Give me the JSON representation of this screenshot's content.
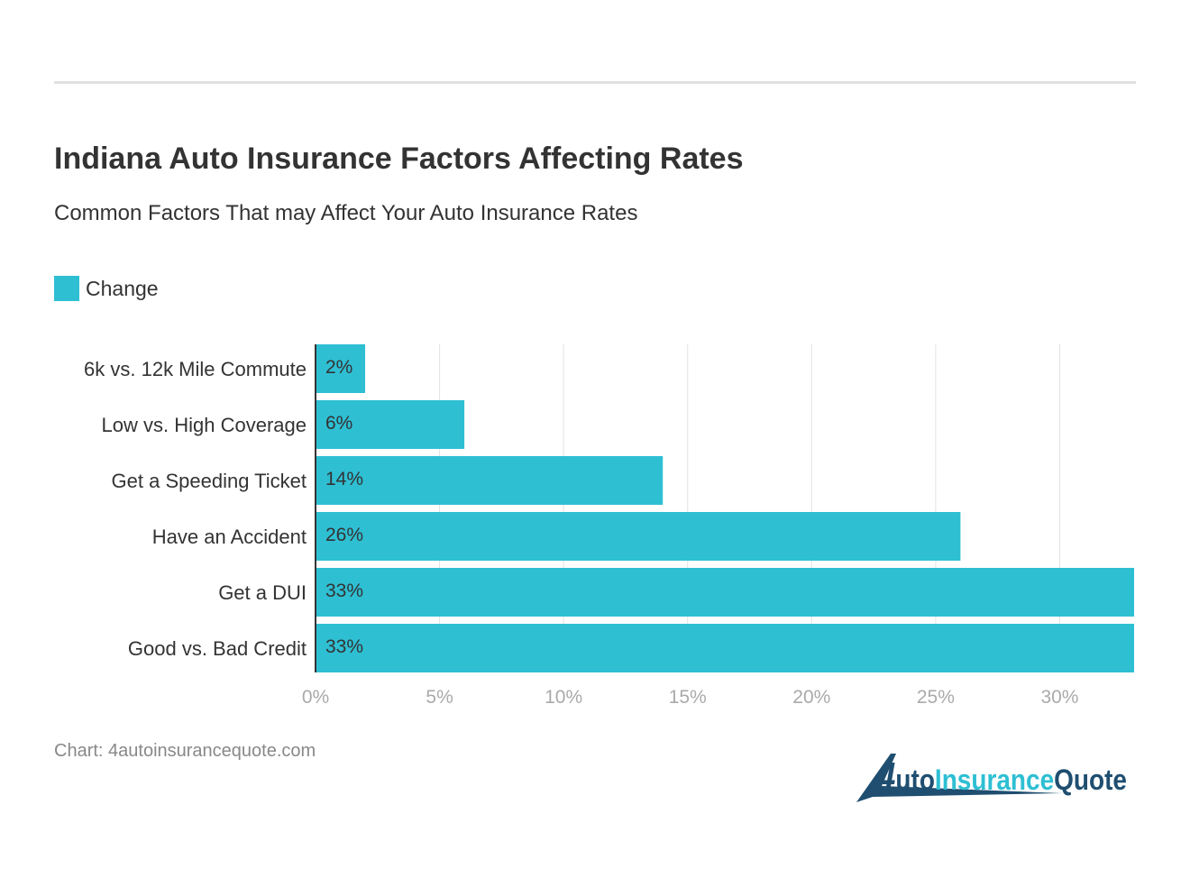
{
  "header": {
    "title": "Indiana Auto Insurance Factors Affecting Rates",
    "subtitle": "Common Factors That may Affect Your Auto Insurance Rates"
  },
  "footer": {
    "source": "Chart: 4autoinsurancequote.com",
    "logo_text": "4AutoInsuranceQuote"
  },
  "colors": {
    "bar": "#2ebfd3",
    "logo_dark": "#1f4e70",
    "logo_light": "#2ebfd3"
  },
  "chart_data": {
    "type": "bar",
    "orientation": "horizontal",
    "title": "Indiana Auto Insurance Factors Affecting Rates",
    "subtitle": "Common Factors That may Affect Your Auto Insurance Rates",
    "categories": [
      "6k vs. 12k Mile Commute",
      "Low vs. High Coverage",
      "Get a Speeding Ticket",
      "Have an Accident",
      "Get a DUI",
      "Good vs. Bad Credit"
    ],
    "series": [
      {
        "name": "Change",
        "values": [
          2,
          6,
          14,
          26,
          33,
          33
        ]
      }
    ],
    "data_labels": [
      "2%",
      "6%",
      "14%",
      "26%",
      "33%",
      "33%"
    ],
    "xticks": [
      0,
      5,
      10,
      15,
      20,
      25,
      30
    ],
    "xtick_labels": [
      "0%",
      "5%",
      "10%",
      "15%",
      "20%",
      "25%",
      "30%"
    ],
    "xlim": [
      0,
      33
    ],
    "grid": true,
    "legend": "top-left"
  }
}
